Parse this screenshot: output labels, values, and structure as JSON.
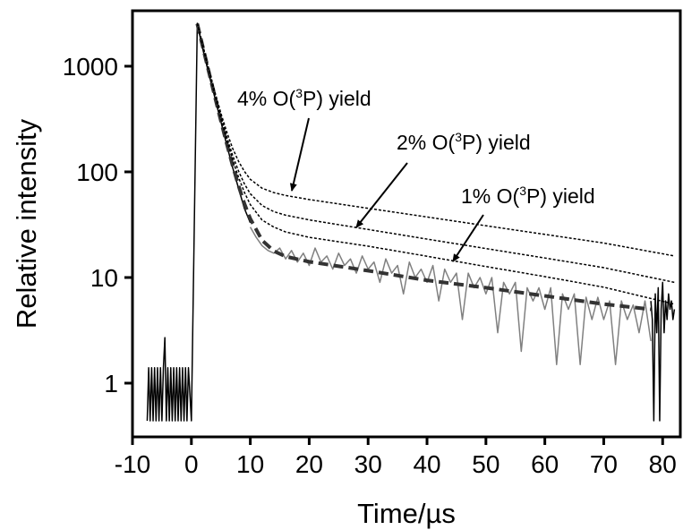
{
  "chart_data": {
    "type": "line",
    "xlabel": "Time/µs",
    "ylabel": "Relative intensity",
    "xlim": [
      -10,
      83
    ],
    "ylim": [
      0.31,
      3350
    ],
    "yscale": "log",
    "xticks": [
      -10,
      0,
      10,
      20,
      30,
      40,
      50,
      60,
      70,
      80
    ],
    "yticks": [
      1,
      10,
      100,
      1000
    ],
    "series": [
      {
        "color": "#808080",
        "width": 1.5,
        "dash": "none",
        "x": [
          10,
          11,
          12,
          13,
          14,
          15,
          16,
          17,
          18,
          19,
          20,
          21,
          22,
          23,
          24,
          25,
          26,
          27,
          28,
          29,
          30,
          31,
          32,
          33,
          34,
          35,
          36,
          37,
          38,
          39,
          40,
          41,
          42,
          43,
          44,
          45,
          46,
          47,
          48,
          49,
          50,
          51,
          52,
          53,
          54,
          55,
          56,
          57,
          58,
          59,
          60,
          61,
          62,
          63,
          64,
          65,
          66,
          67,
          68,
          69,
          70,
          71,
          72,
          73,
          74,
          75,
          76,
          77,
          78
        ],
        "values": [
          30,
          24,
          20,
          18,
          17,
          19,
          15,
          18,
          14,
          17,
          13,
          19,
          14,
          16,
          12,
          17,
          13,
          15,
          11,
          16,
          12,
          14,
          9,
          15,
          11,
          13,
          7,
          14,
          10,
          12,
          9,
          13,
          6,
          12,
          9,
          11,
          4,
          11,
          8,
          10,
          7,
          10,
          3,
          9,
          7,
          9,
          2,
          8,
          6,
          8,
          5,
          8,
          1.5,
          7,
          5,
          7,
          1.5,
          6.5,
          4,
          6.5,
          4,
          6,
          1.5,
          6,
          4,
          5.5,
          3,
          6,
          2.5
        ]
      },
      {
        "color": "#000000",
        "width": 1.5,
        "dash": "none",
        "x": [
          -7.5,
          -7.25,
          -7,
          -6.75,
          -6.5,
          -6.25,
          -6,
          -5.75,
          -5.5,
          -5.25,
          -5,
          -4.75,
          -4.5,
          -4.25,
          -4,
          -3.75,
          -3.5,
          -3.25,
          -3,
          -2.75,
          -2.5,
          -2.25,
          -2,
          -1.75,
          -1.5,
          -1.25,
          -1,
          -0.75,
          -0.5,
          0,
          1,
          2,
          3,
          4,
          5,
          6,
          7,
          8,
          9,
          10,
          null,
          78,
          78.25,
          78.5,
          78.75,
          79,
          79.25,
          79.5,
          79.75,
          80,
          80.25,
          80.5,
          80.75,
          81,
          81.25,
          81.5,
          81.75,
          82
        ],
        "values": [
          0.44,
          1.4,
          0.44,
          1.4,
          0.44,
          1.4,
          0.44,
          1.4,
          0.44,
          1.4,
          0.44,
          1.4,
          2.7,
          0.44,
          1.4,
          0.44,
          1.4,
          0.44,
          1.4,
          0.44,
          1.4,
          0.44,
          1.4,
          0.44,
          1.4,
          0.44,
          1.4,
          0.44,
          1.4,
          0.44,
          2500,
          1400,
          830,
          500,
          300,
          180,
          110,
          70,
          45,
          33,
          null,
          6,
          4,
          0.44,
          7,
          3,
          8,
          0.44,
          5,
          9,
          3,
          6,
          4,
          7,
          5,
          6,
          4,
          5
        ]
      },
      {
        "color": "#333333",
        "width": 4,
        "dash": "11,6",
        "x": [
          1,
          2,
          3,
          4,
          5,
          6,
          7,
          8,
          9,
          10,
          12,
          14,
          16,
          20,
          30,
          40,
          50,
          60,
          70,
          78
        ],
        "values": [
          2520,
          1474,
          866,
          512,
          305,
          185,
          115,
          74,
          50,
          36,
          22.5,
          17.8,
          15.8,
          14.1,
          11.6,
          9.4,
          8.0,
          6.7,
          5.6,
          5.0
        ]
      },
      {
        "color": "#000000",
        "width": 1.5,
        "dash": "3,2",
        "x": [
          1,
          2,
          3,
          4,
          5,
          6,
          7,
          8,
          9,
          10,
          12,
          14,
          16,
          20,
          30,
          40,
          50,
          60,
          70,
          82
        ],
        "values": [
          2579,
          1533,
          923,
          568,
          360,
          239,
          167,
          126,
          101,
          85,
          70,
          63.6,
          59.8,
          54.7,
          45.2,
          37.4,
          30.9,
          25.6,
          21.2,
          16
        ]
      },
      {
        "color": "#000000",
        "width": 1.5,
        "dash": "3,2",
        "x": [
          1,
          2,
          3,
          4,
          5,
          6,
          7,
          8,
          9,
          10,
          12,
          14,
          16,
          20,
          30,
          40,
          50,
          60,
          70,
          82
        ],
        "values": [
          2553,
          1507,
          898,
          543,
          336,
          215,
          143,
          102,
          77,
          62,
          48,
          42,
          38.9,
          35.1,
          28.5,
          23.1,
          18.8,
          15.3,
          12.4,
          9
        ]
      },
      {
        "color": "#000000",
        "width": 1.5,
        "dash": "3,2",
        "x": [
          1,
          2,
          3,
          4,
          5,
          6,
          7,
          8,
          9,
          10,
          12,
          14,
          16,
          20,
          30,
          40,
          50,
          60,
          70,
          82
        ],
        "values": [
          2538,
          1492,
          883,
          528,
          321,
          200,
          130,
          89,
          64,
          49,
          35,
          30,
          27,
          24,
          19.8,
          15.9,
          12.7,
          10.2,
          8.1,
          5.6
        ]
      }
    ],
    "annotations": [
      {
        "parts": [
          "4% O(",
          "3",
          "P) yield"
        ]
      },
      {
        "parts": [
          "2% O(",
          "3",
          "P) yield"
        ]
      },
      {
        "parts": [
          "1% O(",
          "3",
          "P) yield"
        ]
      }
    ]
  }
}
